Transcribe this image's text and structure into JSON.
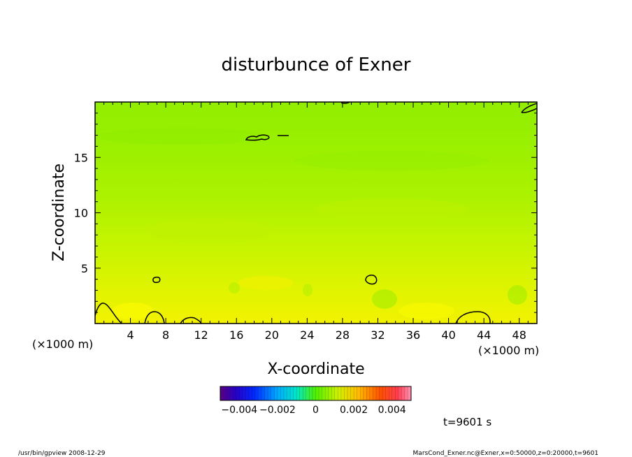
{
  "chart_data": {
    "type": "heatmap",
    "title": "disturbunce of Exner",
    "xlabel": "X-coordinate",
    "ylabel": "Z-coordinate",
    "x_unit_left": "(×1000 m)",
    "x_unit_right": "(×1000 m)",
    "x_ticks": [
      "4",
      "8",
      "12",
      "16",
      "20",
      "24",
      "28",
      "32",
      "36",
      "40",
      "44",
      "48"
    ],
    "x_tick_values": [
      4,
      8,
      12,
      16,
      20,
      24,
      28,
      32,
      36,
      40,
      44,
      48
    ],
    "y_ticks": [
      "5",
      "10",
      "15"
    ],
    "y_tick_values": [
      5,
      10,
      15
    ],
    "xlim": [
      0,
      50
    ],
    "ylim": [
      0,
      20
    ],
    "colorbar": {
      "range": [
        -0.005,
        0.005
      ],
      "tick_labels": [
        "−0.004",
        "−0.002",
        "0",
        "0.002",
        "0.004"
      ],
      "tick_values": [
        -0.004,
        -0.002,
        0,
        0.002,
        0.004
      ]
    },
    "field_profile": {
      "z": [
        0,
        2,
        4,
        6,
        8,
        10,
        12,
        14,
        16,
        18,
        20
      ],
      "value": [
        0.0015,
        0.0011,
        0.0009,
        0.0007,
        0.0005,
        0.0004,
        0.0002,
        0.0001,
        0.0,
        -0.0001,
        -0.0001
      ]
    }
  },
  "time_label": "t=9601 s",
  "footer_left": "/usr/bin/gpview   2008-12-29",
  "footer_right": "MarsCond_Exner.nc@Exner,x=0:50000,z=0:20000,t=9601",
  "colors": {
    "frame": "#000000",
    "contour": "#000000",
    "background": "#ffffff"
  }
}
